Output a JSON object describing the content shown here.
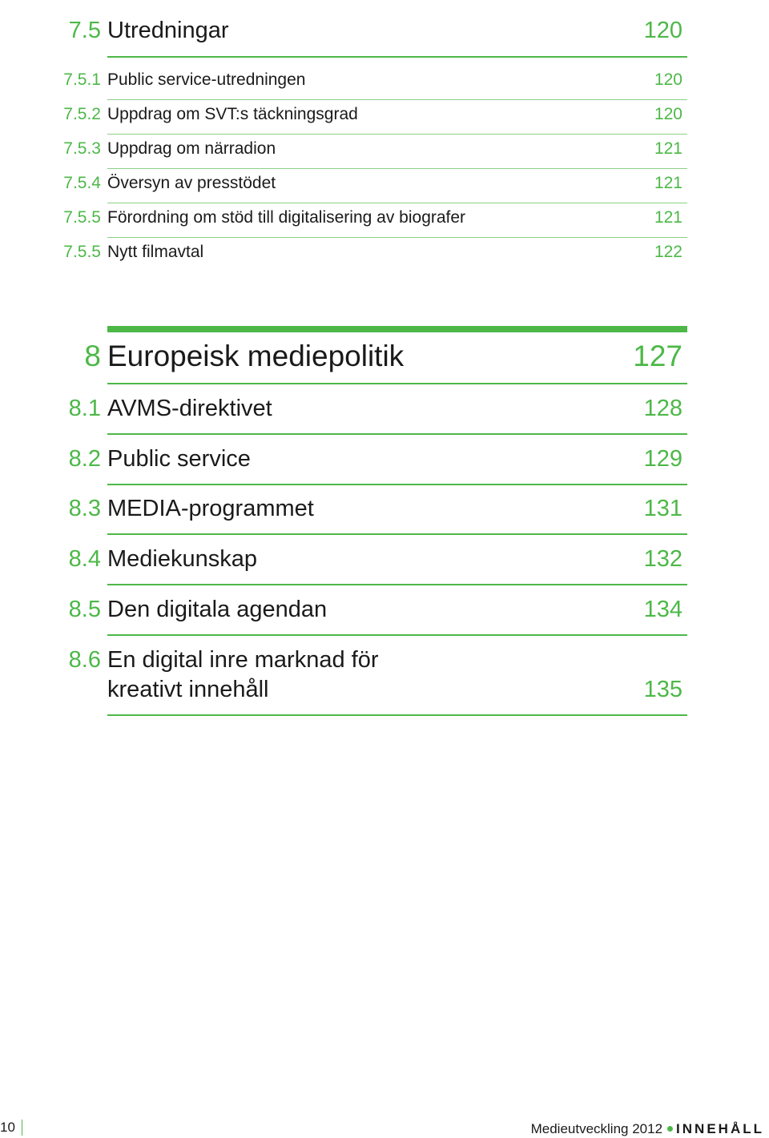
{
  "section_75": {
    "num": "7.5",
    "title": "Utredningar",
    "page": "120"
  },
  "subsections_75": [
    {
      "num": "7.5.1",
      "title": "Public service-utredningen",
      "page": "120"
    },
    {
      "num": "7.5.2",
      "title": "Uppdrag om SVT:s täckningsgrad",
      "page": "120"
    },
    {
      "num": "7.5.3",
      "title": "Uppdrag om närradion",
      "page": "121"
    },
    {
      "num": "7.5.4",
      "title": "Översyn av presstödet",
      "page": "121"
    },
    {
      "num": "7.5.5",
      "title": "Förordning om stöd till digitalisering av biografer",
      "page": "121"
    },
    {
      "num": "7.5.5",
      "title": "Nytt filmavtal",
      "page": "122"
    }
  ],
  "chapter_8": {
    "num": "8",
    "title": "Europeisk mediepolitik",
    "page": "127"
  },
  "sections_8": [
    {
      "num": "8.1",
      "title": "AVMS-direktivet",
      "page": "128"
    },
    {
      "num": "8.2",
      "title": "Public service",
      "page": "129"
    },
    {
      "num": "8.3",
      "title": "MEDIA-programmet",
      "page": "131"
    },
    {
      "num": "8.4",
      "title": "Mediekunskap",
      "page": "132"
    },
    {
      "num": "8.5",
      "title": "Den digitala agendan",
      "page": "134"
    },
    {
      "num": "8.6",
      "title_line1": "En digital inre marknad för",
      "title_line2": "kreativt innehåll",
      "page": "135"
    }
  ],
  "footer": {
    "page_number": "10",
    "publication": "Medieutveckling 2012",
    "section": "INNEHÅLL"
  },
  "colors": {
    "accent": "#4db848",
    "text": "#1a1a1a"
  }
}
